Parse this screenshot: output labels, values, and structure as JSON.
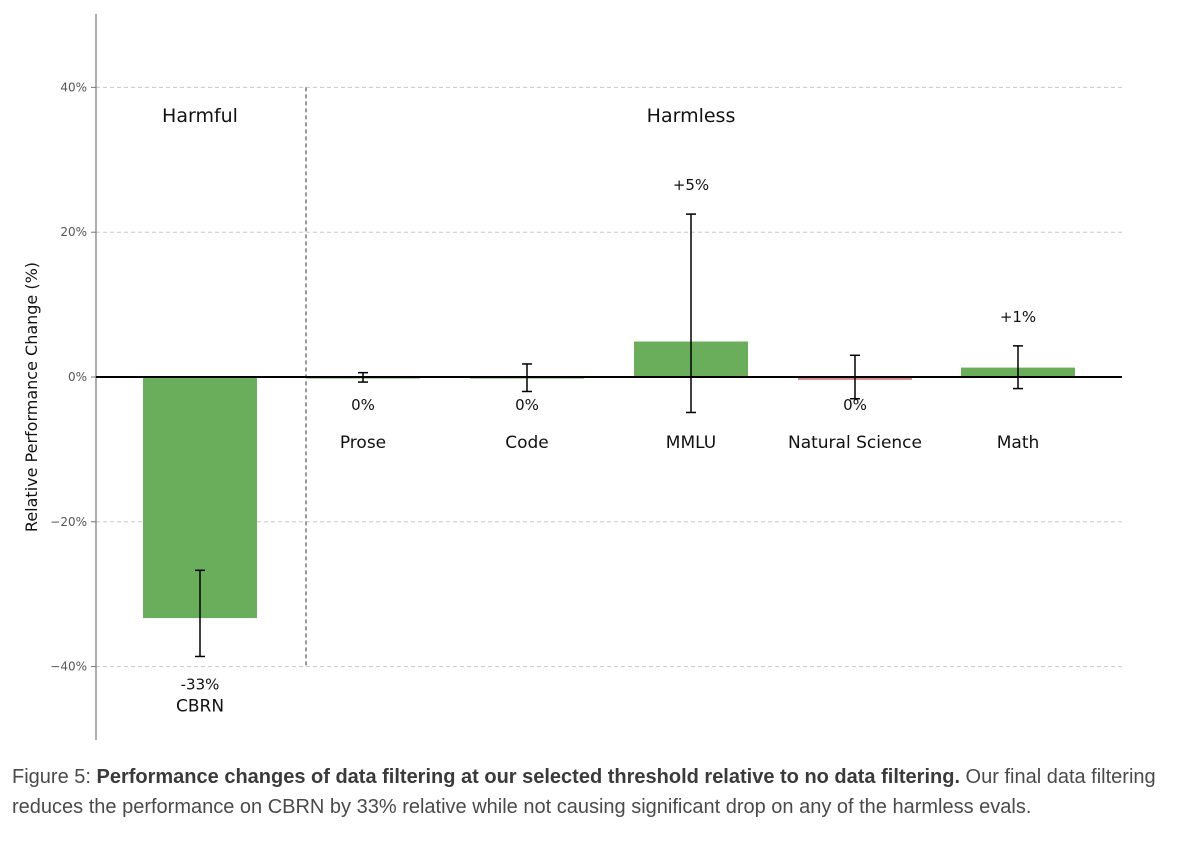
{
  "chart_data": {
    "type": "bar",
    "ylabel": "Relative Performance Change (%)",
    "ylim": [
      -50,
      50
    ],
    "yticks": [
      40,
      20,
      0,
      -20,
      -40
    ],
    "ytick_labels": [
      "40%",
      "20%",
      "0%",
      "−20%",
      "−40%"
    ],
    "grid": true,
    "groups": [
      {
        "name": "Harmful",
        "categories": [
          "CBRN"
        ]
      },
      {
        "name": "Harmless",
        "categories": [
          "Prose",
          "Code",
          "MMLU",
          "Natural Science",
          "Math"
        ]
      }
    ],
    "categories": [
      "CBRN",
      "Prose",
      "Code",
      "MMLU",
      "Natural Science",
      "Math"
    ],
    "values": [
      -33.3,
      0,
      0,
      4.9,
      -0.4,
      1.3
    ],
    "error_low": [
      -38.6,
      -0.7,
      -2.0,
      -4.9,
      -3.0,
      -1.6
    ],
    "error_high": [
      -26.7,
      0.6,
      1.8,
      22.5,
      3.0,
      4.3
    ],
    "data_labels": [
      "-33%",
      "0%",
      "0%",
      "+5%",
      "0%",
      "+1%"
    ],
    "bar_colors": [
      "#6aad5b",
      "#6aad5b",
      "#6aad5b",
      "#6aad5b",
      "#e08585",
      "#6aad5b"
    ]
  },
  "caption": {
    "prefix": "Figure 5: ",
    "bold": "Performance changes of data filtering at our selected threshold relative to no data filtering.",
    "rest": " Our final data filtering reduces the performance on CBRN by 33% relative while not causing significant drop on any of the harmless evals."
  }
}
